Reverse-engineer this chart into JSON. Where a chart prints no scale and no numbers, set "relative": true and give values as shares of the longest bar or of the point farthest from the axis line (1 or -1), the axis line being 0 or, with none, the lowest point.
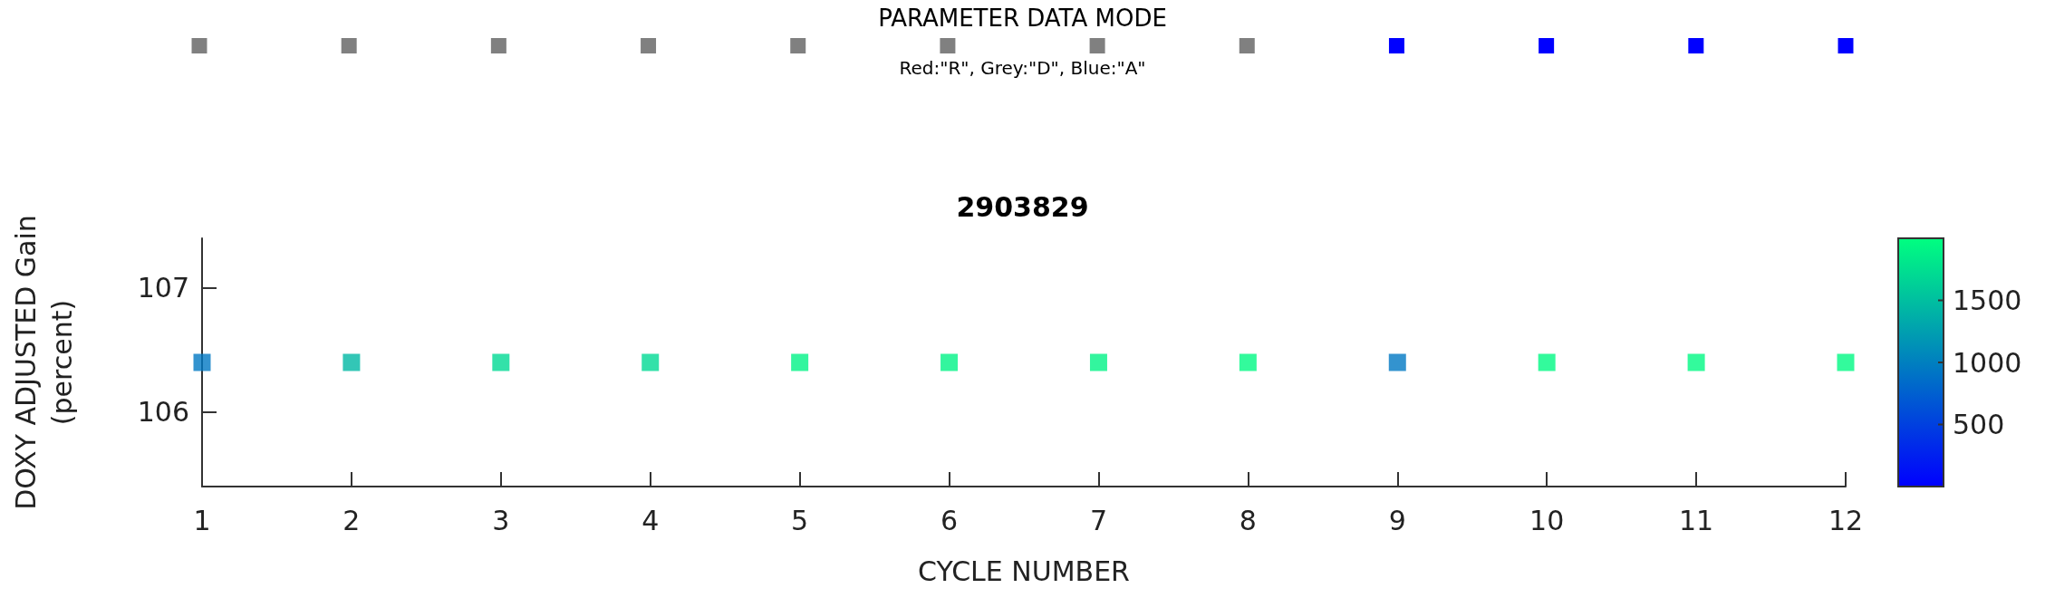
{
  "chart_data": [
    {
      "type": "bar",
      "title": "PARAMETER DATA MODE",
      "subtitle": "Red:\"R\", Grey:\"D\", Blue:\"A\"",
      "categories": [
        null,
        null,
        null,
        null,
        null,
        null,
        null,
        null,
        null,
        null,
        null,
        null
      ],
      "values": [
        1,
        1,
        1,
        1,
        1,
        1,
        1,
        1,
        1,
        1,
        1,
        1
      ],
      "colors": [
        "#808080",
        "#808080",
        "#808080",
        "#808080",
        "#808080",
        "#808080",
        "#808080",
        "#808080",
        "#0000ff",
        "#0000ff",
        "#0000ff",
        "#0000ff"
      ],
      "relative": true
    },
    {
      "type": "scatter",
      "title": "2903829",
      "xlabel": "CYCLE NUMBER",
      "ylabel": "DOXY ADJUSTED Gain\n(percent)",
      "x": [
        1,
        2,
        3,
        4,
        5,
        6,
        7,
        8,
        9,
        10,
        11,
        12
      ],
      "values": [
        106.4,
        106.4,
        106.4,
        106.4,
        106.4,
        106.4,
        106.4,
        106.4,
        106.4,
        106.4,
        106.4,
        106.4
      ],
      "cvalues": [
        940,
        1440,
        1700,
        1700,
        1900,
        1900,
        1900,
        1950,
        940,
        1950,
        1950,
        1950
      ],
      "xlim": [
        1,
        12
      ],
      "xticks": [
        1,
        2,
        3,
        4,
        5,
        6,
        7,
        8,
        9,
        10,
        11,
        12
      ],
      "ylim": [
        105.4,
        107.4
      ],
      "yticks": [
        106,
        107
      ],
      "clim": [
        0,
        2000
      ],
      "cticks": [
        500,
        1000,
        1500
      ],
      "marker": "square"
    }
  ]
}
